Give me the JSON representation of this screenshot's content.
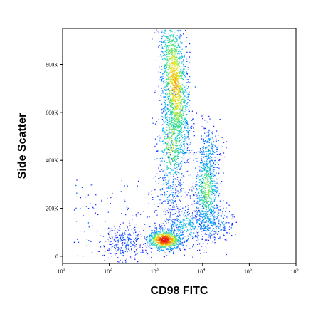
{
  "chart_data": {
    "type": "scatter",
    "title": "",
    "xlabel": "CD98 FITC",
    "ylabel": "Side Scatter",
    "x_scale": "log",
    "y_scale": "linear",
    "xlim": [
      10,
      1000000
    ],
    "ylim": [
      -30000,
      950000
    ],
    "grid": false,
    "legend": "none",
    "x_ticks": [
      {
        "value": 10,
        "base": "10",
        "exp": "1"
      },
      {
        "value": 100,
        "base": "10",
        "exp": "2"
      },
      {
        "value": 1000,
        "base": "10",
        "exp": "3"
      },
      {
        "value": 10000,
        "base": "10",
        "exp": "4"
      },
      {
        "value": 100000,
        "base": "10",
        "exp": "5"
      },
      {
        "value": 1000000,
        "base": "10",
        "exp": "6"
      }
    ],
    "y_ticks": [
      {
        "value": 0,
        "label": "0"
      },
      {
        "value": 200000,
        "label": "200K"
      },
      {
        "value": 400000,
        "label": "400K"
      },
      {
        "value": 600000,
        "label": "600K"
      },
      {
        "value": 800000,
        "label": "800K"
      }
    ],
    "density_colormap": [
      "#1a1aff",
      "#00b4ff",
      "#2ee08a",
      "#e8f020",
      "#ff7a00",
      "#e01010"
    ],
    "populations": [
      {
        "x": 1500,
        "y": 70000,
        "density": "highest"
      },
      {
        "x": 2500,
        "y": 600000,
        "density": "high"
      },
      {
        "x": 12000,
        "y": 280000,
        "density": "medium"
      },
      {
        "x": 200,
        "y": 60000,
        "density": "sparse"
      }
    ]
  }
}
